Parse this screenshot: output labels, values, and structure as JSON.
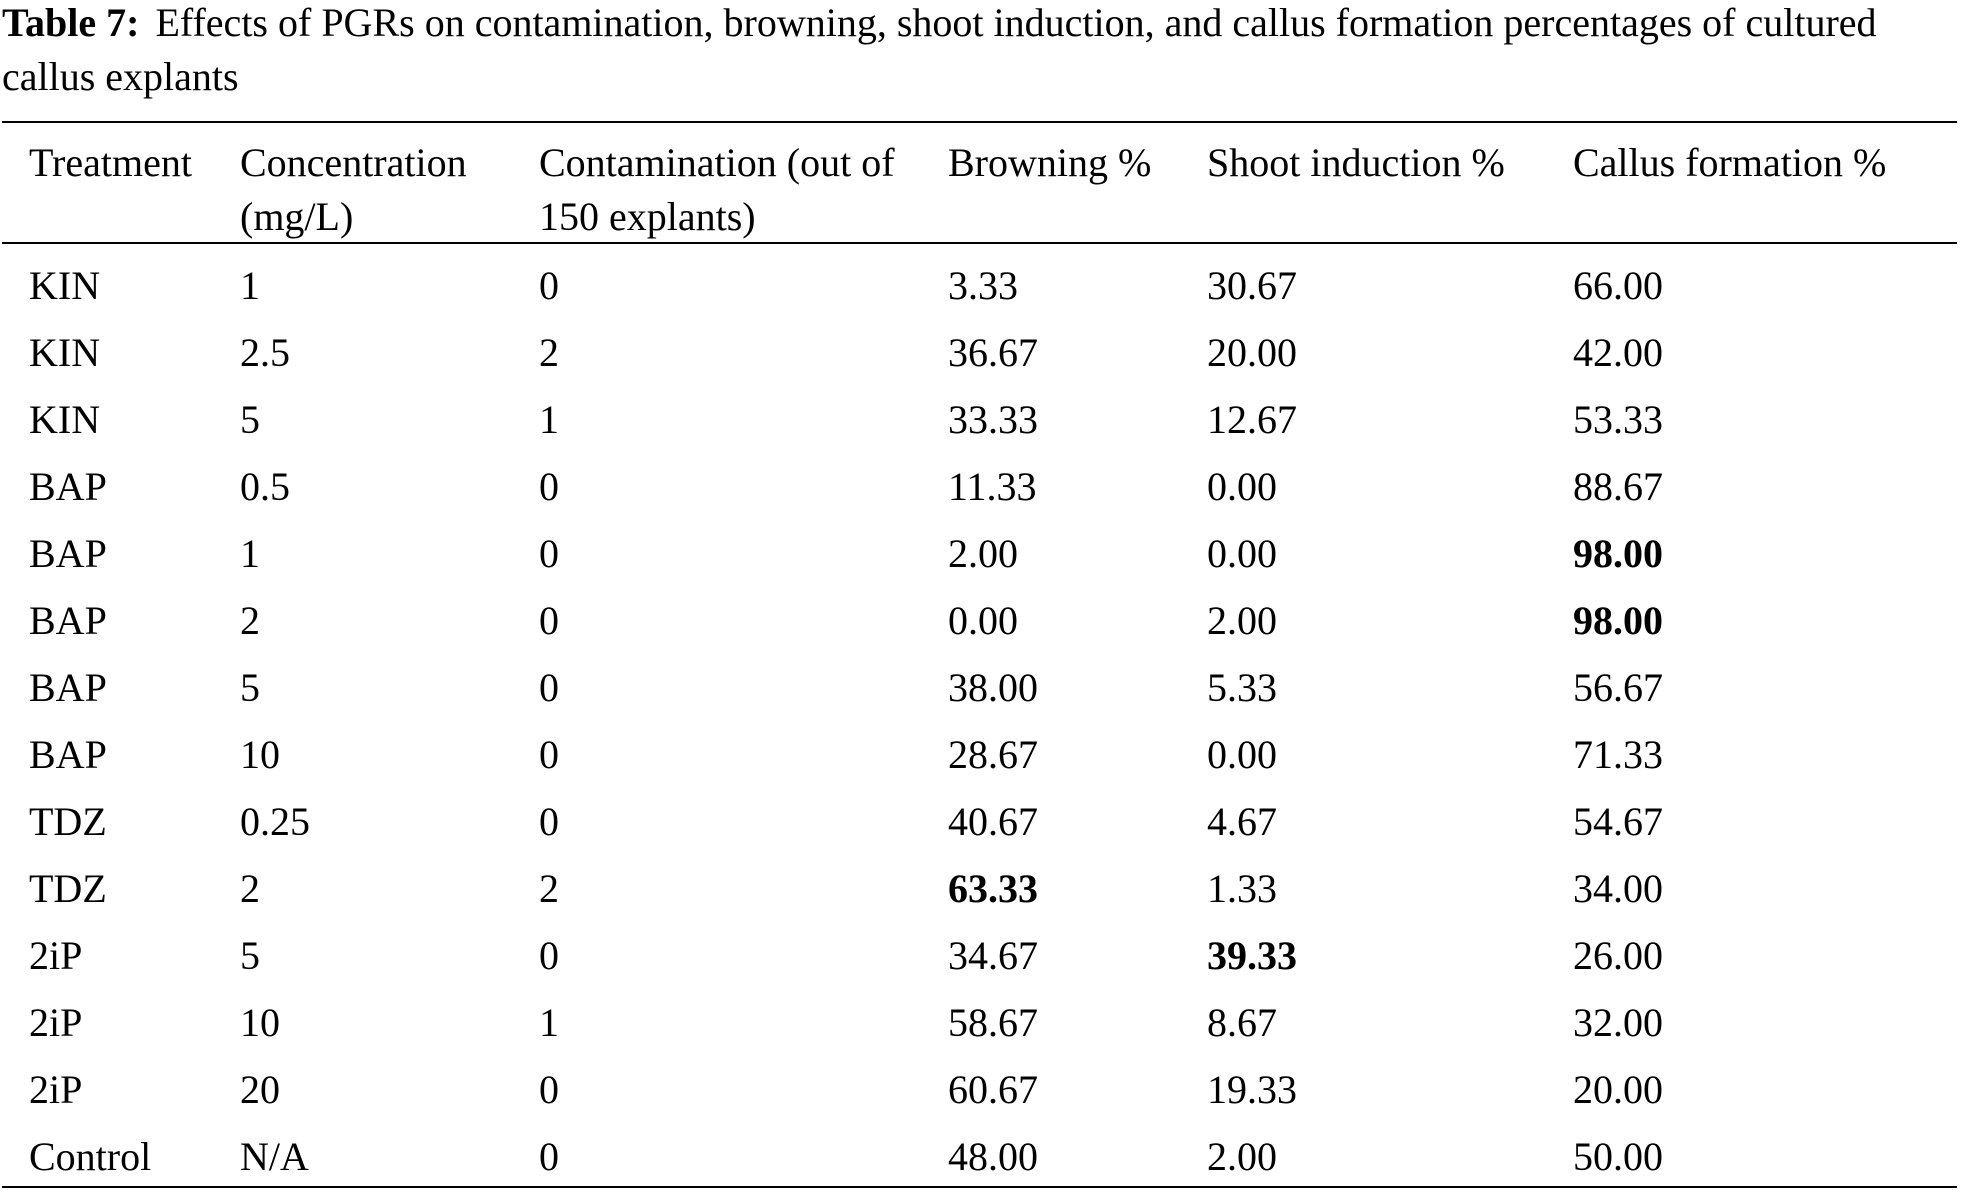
{
  "caption": {
    "label": "Table 7:",
    "text": "Effects of PGRs on contamination, browning, shoot induction, and callus formation percentages of cultured callus explants"
  },
  "table": {
    "headers": [
      "Treatment",
      "Concentration (mg/L)",
      "Contamination (out of 150 explants)",
      "Browning %",
      "Shoot induction %",
      "Callus formation %"
    ],
    "rows": [
      [
        "KIN",
        "1",
        "0",
        "3.33",
        "30.67",
        "66.00"
      ],
      [
        "KIN",
        "2.5",
        "2",
        "36.67",
        "20.00",
        "42.00"
      ],
      [
        "KIN",
        "5",
        "1",
        "33.33",
        "12.67",
        "53.33"
      ],
      [
        "BAP",
        "0.5",
        "0",
        "11.33",
        "0.00",
        "88.67"
      ],
      [
        "BAP",
        "1",
        "0",
        "2.00",
        "0.00",
        "98.00"
      ],
      [
        "BAP",
        "2",
        "0",
        "0.00",
        "2.00",
        "98.00"
      ],
      [
        "BAP",
        "5",
        "0",
        "38.00",
        "5.33",
        "56.67"
      ],
      [
        "BAP",
        "10",
        "0",
        "28.67",
        "0.00",
        "71.33"
      ],
      [
        "TDZ",
        "0.25",
        "0",
        "40.67",
        "4.67",
        "54.67"
      ],
      [
        "TDZ",
        "2",
        "2",
        "63.33",
        "1.33",
        "34.00"
      ],
      [
        "2iP",
        "5",
        "0",
        "34.67",
        "39.33",
        "26.00"
      ],
      [
        "2iP",
        "10",
        "1",
        "58.67",
        "8.67",
        "32.00"
      ],
      [
        "2iP",
        "20",
        "0",
        "60.67",
        "19.33",
        "20.00"
      ],
      [
        "Control",
        "N/A",
        "0",
        "48.00",
        "2.00",
        "50.00"
      ]
    ],
    "bold_cells": [
      [
        4,
        5
      ],
      [
        5,
        5
      ],
      [
        9,
        3
      ],
      [
        10,
        4
      ]
    ]
  }
}
